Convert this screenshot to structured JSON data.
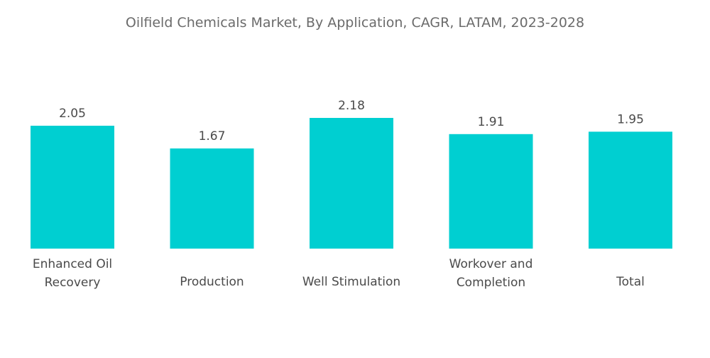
{
  "chart_data": {
    "type": "bar",
    "title": "Oilfield Chemicals Market, By Application, CAGR, LATAM, 2023-2028",
    "categories": [
      [
        "Enhanced Oil",
        "Recovery"
      ],
      [
        "Production"
      ],
      [
        "Well Stimulation"
      ],
      [
        "Workover and",
        "Completion"
      ],
      [
        "Total"
      ]
    ],
    "values": [
      2.05,
      1.67,
      2.18,
      1.91,
      1.95
    ],
    "value_labels": [
      "2.05",
      "1.67",
      "2.18",
      "1.91",
      "1.95"
    ],
    "xlabel": "",
    "ylabel": "",
    "ylim": [
      0,
      2.18
    ],
    "grid": false,
    "legend": "none",
    "bar_color": "#00cfd1"
  }
}
